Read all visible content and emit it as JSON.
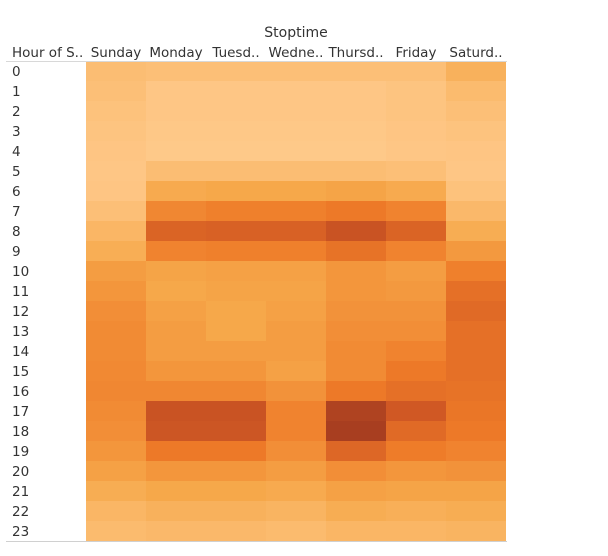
{
  "chart_data": {
    "type": "heatmap",
    "column_title": "Stoptime",
    "row_header": "Hour of S..",
    "columns": [
      "Sunday",
      "Monday",
      "Tuesd..",
      "Wedne..",
      "Thursd..",
      "Friday",
      "Saturd.."
    ],
    "rows": [
      "0",
      "1",
      "2",
      "3",
      "4",
      "5",
      "6",
      "7",
      "8",
      "9",
      "10",
      "11",
      "12",
      "13",
      "14",
      "15",
      "16",
      "17",
      "18",
      "19",
      "20",
      "21",
      "22",
      "23"
    ],
    "value_scale": [
      0,
      100
    ],
    "color_scale": {
      "low": "#ffcb8e",
      "high": "#a83e20"
    },
    "values": [
      [
        12,
        10,
        10,
        10,
        10,
        10,
        22
      ],
      [
        10,
        4,
        4,
        4,
        4,
        6,
        14
      ],
      [
        8,
        4,
        4,
        4,
        4,
        6,
        10
      ],
      [
        6,
        3,
        3,
        3,
        3,
        5,
        7
      ],
      [
        5,
        2,
        2,
        2,
        2,
        4,
        5
      ],
      [
        4,
        12,
        12,
        12,
        12,
        10,
        4
      ],
      [
        5,
        28,
        30,
        30,
        32,
        28,
        8
      ],
      [
        10,
        48,
        52,
        52,
        56,
        50,
        16
      ],
      [
        18,
        70,
        72,
        72,
        82,
        70,
        26
      ],
      [
        25,
        50,
        52,
        52,
        60,
        50,
        38
      ],
      [
        36,
        32,
        34,
        34,
        40,
        36,
        52
      ],
      [
        40,
        30,
        32,
        32,
        40,
        38,
        62
      ],
      [
        44,
        34,
        30,
        34,
        42,
        42,
        66
      ],
      [
        46,
        36,
        30,
        36,
        44,
        44,
        62
      ],
      [
        46,
        36,
        36,
        36,
        46,
        50,
        62
      ],
      [
        47,
        40,
        40,
        34,
        46,
        56,
        62
      ],
      [
        48,
        48,
        48,
        42,
        56,
        62,
        60
      ],
      [
        46,
        82,
        82,
        50,
        96,
        78,
        58
      ],
      [
        44,
        80,
        80,
        50,
        100,
        66,
        56
      ],
      [
        40,
        56,
        56,
        44,
        68,
        54,
        50
      ],
      [
        34,
        40,
        40,
        36,
        44,
        40,
        42
      ],
      [
        26,
        30,
        30,
        28,
        34,
        32,
        32
      ],
      [
        18,
        22,
        22,
        20,
        26,
        24,
        26
      ],
      [
        14,
        16,
        16,
        14,
        18,
        18,
        20
      ]
    ]
  }
}
